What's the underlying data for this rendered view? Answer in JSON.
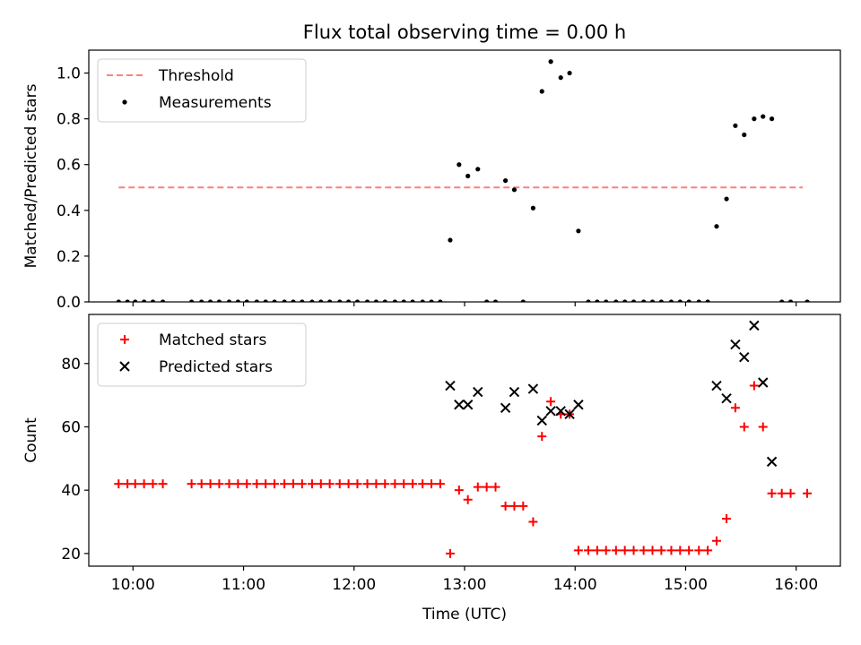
{
  "chart_data": {
    "type": "scatter",
    "title": "Flux total observing time = 0.00 h",
    "xlabel": "Time (UTC)",
    "xlim": [
      9.6,
      16.4
    ],
    "xticks": [
      10,
      11,
      12,
      13,
      14,
      15,
      16
    ],
    "xticklabels": [
      "10:00",
      "11:00",
      "12:00",
      "13:00",
      "14:00",
      "15:00",
      "16:00"
    ],
    "panels": [
      {
        "ylabel": "Matched/Predicted stars",
        "ylim": [
          0,
          1.1
        ],
        "yticks": [
          0.0,
          0.2,
          0.4,
          0.6,
          0.8,
          1.0
        ],
        "yticklabels": [
          "0.0",
          "0.2",
          "0.4",
          "0.6",
          "0.8",
          "1.0"
        ],
        "legend_position": "top-left",
        "series": [
          {
            "name": "Threshold",
            "kind": "line-dashed",
            "color": "#ff7f7f",
            "x": [
              9.87,
              16.06
            ],
            "y": [
              0.5,
              0.5
            ]
          },
          {
            "name": "Measurements",
            "kind": "dot",
            "color": "#000000",
            "x": [
              9.87,
              9.95,
              10.02,
              10.1,
              10.18,
              10.27,
              10.53,
              10.62,
              10.7,
              10.78,
              10.87,
              10.95,
              11.03,
              11.12,
              11.2,
              11.28,
              11.37,
              11.45,
              11.53,
              11.62,
              11.7,
              11.78,
              11.87,
              11.95,
              12.03,
              12.12,
              12.2,
              12.28,
              12.37,
              12.45,
              12.53,
              12.62,
              12.7,
              12.78,
              12.87,
              12.95,
              13.03,
              13.12,
              13.2,
              13.28,
              13.37,
              13.45,
              13.53,
              13.62,
              13.7,
              13.78,
              13.87,
              13.95,
              14.03,
              14.12,
              14.2,
              14.28,
              14.37,
              14.45,
              14.53,
              14.62,
              14.7,
              14.78,
              14.87,
              14.95,
              15.03,
              15.12,
              15.2,
              15.28,
              15.37,
              15.45,
              15.53,
              15.62,
              15.7,
              15.78,
              15.87,
              15.95,
              16.1
            ],
            "y": [
              0,
              0,
              0,
              0,
              0,
              0,
              0,
              0,
              0,
              0,
              0,
              0,
              0,
              0,
              0,
              0,
              0,
              0,
              0,
              0,
              0,
              0,
              0,
              0,
              0,
              0,
              0,
              0,
              0,
              0,
              0,
              0,
              0,
              0,
              0.27,
              0.6,
              0.55,
              0.58,
              0,
              0,
              0.53,
              0.49,
              0,
              0.41,
              0.92,
              1.05,
              0.98,
              1.0,
              0.31,
              0,
              0,
              0,
              0,
              0,
              0,
              0,
              0,
              0,
              0,
              0,
              0,
              0,
              0,
              0.33,
              0.45,
              0.77,
              0.73,
              0.8,
              0.81,
              0.8,
              0,
              0,
              0
            ]
          }
        ]
      },
      {
        "ylabel": "Count",
        "ylim": [
          16,
          95.5
        ],
        "yticks": [
          20,
          40,
          60,
          80
        ],
        "yticklabels": [
          "20",
          "40",
          "60",
          "80"
        ],
        "legend_position": "top-left",
        "series": [
          {
            "name": "Matched stars",
            "kind": "plus",
            "color": "#ff0000",
            "x": [
              9.87,
              9.95,
              10.02,
              10.1,
              10.18,
              10.27,
              10.53,
              10.62,
              10.7,
              10.78,
              10.87,
              10.95,
              11.03,
              11.12,
              11.2,
              11.28,
              11.37,
              11.45,
              11.53,
              11.62,
              11.7,
              11.78,
              11.87,
              11.95,
              12.03,
              12.12,
              12.2,
              12.28,
              12.37,
              12.45,
              12.53,
              12.62,
              12.7,
              12.78,
              12.87,
              12.95,
              13.03,
              13.12,
              13.2,
              13.28,
              13.37,
              13.45,
              13.53,
              13.62,
              13.7,
              13.78,
              13.87,
              13.95,
              14.03,
              14.12,
              14.2,
              14.28,
              14.37,
              14.45,
              14.53,
              14.62,
              14.7,
              14.78,
              14.87,
              14.95,
              15.03,
              15.12,
              15.2,
              15.28,
              15.37,
              15.45,
              15.53,
              15.62,
              15.7,
              15.78,
              15.87,
              15.95,
              16.1
            ],
            "y": [
              42,
              42,
              42,
              42,
              42,
              42,
              42,
              42,
              42,
              42,
              42,
              42,
              42,
              42,
              42,
              42,
              42,
              42,
              42,
              42,
              42,
              42,
              42,
              42,
              42,
              42,
              42,
              42,
              42,
              42,
              42,
              42,
              42,
              42,
              20,
              40,
              37,
              41,
              41,
              41,
              35,
              35,
              35,
              30,
              57,
              68,
              64,
              64,
              21,
              21,
              21,
              21,
              21,
              21,
              21,
              21,
              21,
              21,
              21,
              21,
              21,
              21,
              21,
              24,
              31,
              66,
              60,
              73,
              60,
              39,
              39,
              39,
              39
            ]
          },
          {
            "name": "Predicted stars",
            "kind": "x",
            "color": "#000000",
            "x": [
              12.87,
              12.95,
              13.03,
              13.12,
              13.37,
              13.45,
              13.62,
              13.7,
              13.78,
              13.87,
              13.95,
              14.03,
              15.28,
              15.37,
              15.45,
              15.53,
              15.62,
              15.7,
              15.78
            ],
            "y": [
              73,
              67,
              67,
              71,
              66,
              71,
              72,
              62,
              65,
              65,
              64,
              67,
              73,
              69,
              86,
              82,
              92,
              74,
              49
            ]
          }
        ]
      }
    ]
  }
}
